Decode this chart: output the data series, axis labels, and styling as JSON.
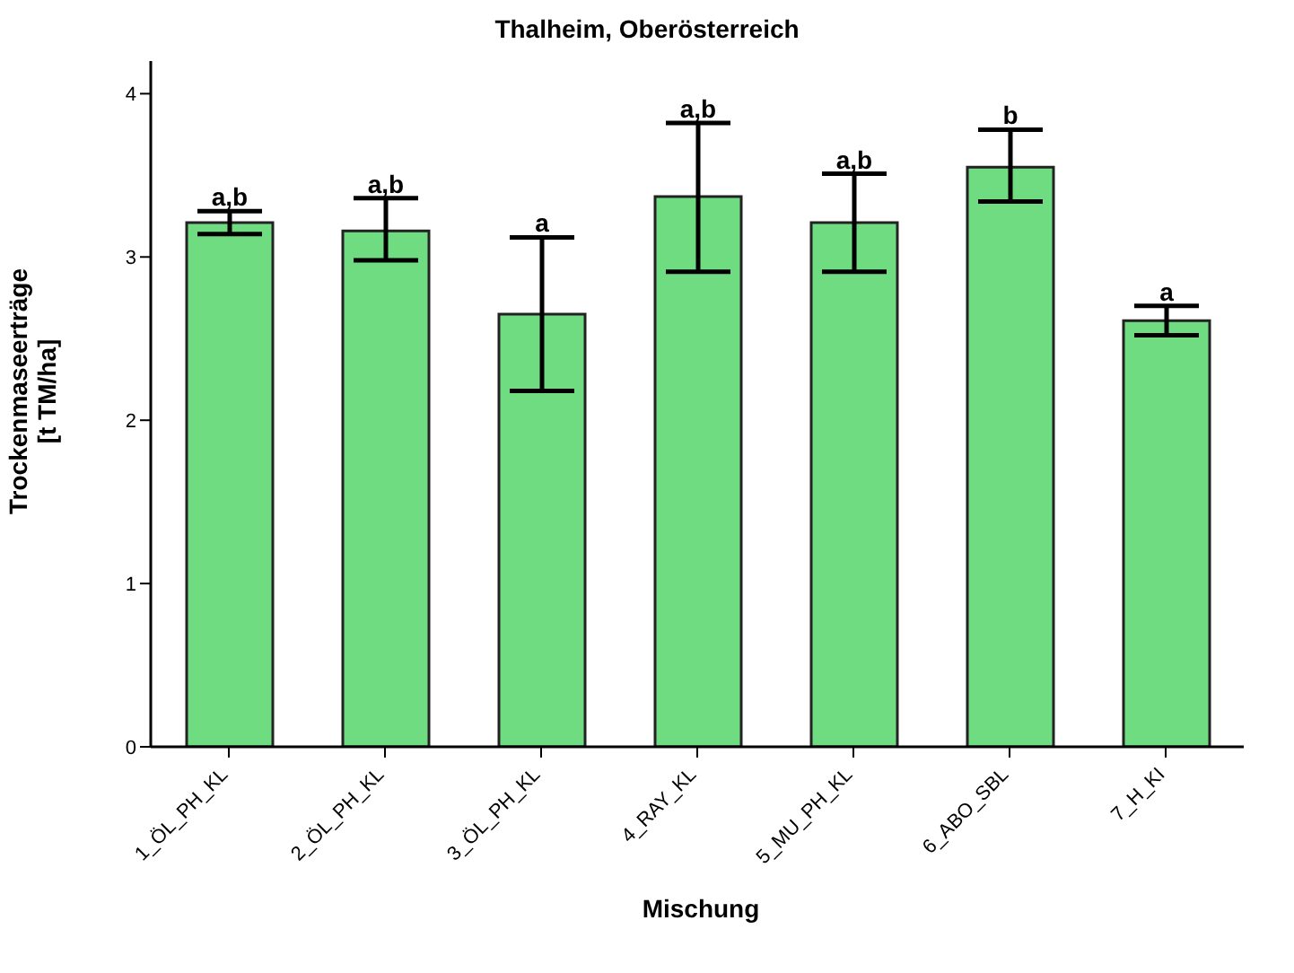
{
  "chart_data": {
    "type": "bar",
    "title": "Thalheim, Oberösterreich",
    "xlabel": "Mischung",
    "ylabel": "Trockenmaseerträge\n[t TM/ha]",
    "categories": [
      "1_ÖL_PH_KL",
      "2_ÖL_PH_KL",
      "3_ÖL_PH_KL",
      "4_RAY_KL",
      "5_MU_PH_KL",
      "6_ABO_SBL",
      "7_H_KI"
    ],
    "values": [
      3.21,
      3.16,
      2.65,
      3.37,
      3.21,
      3.55,
      2.61
    ],
    "errors": [
      [
        3.14,
        3.28
      ],
      [
        2.98,
        3.36
      ],
      [
        2.18,
        3.12
      ],
      [
        2.91,
        3.82
      ],
      [
        2.91,
        3.51
      ],
      [
        3.34,
        3.78
      ],
      [
        2.52,
        2.7
      ]
    ],
    "color": "#70dc82",
    "ylim": [
      0,
      4.2
    ],
    "yticks": [
      0,
      1,
      2,
      3,
      4
    ],
    "grid": false,
    "legend": false,
    "value_labels": [
      "a,b",
      "a,b",
      "a",
      "a,b",
      "a,b",
      "b",
      "a"
    ]
  }
}
